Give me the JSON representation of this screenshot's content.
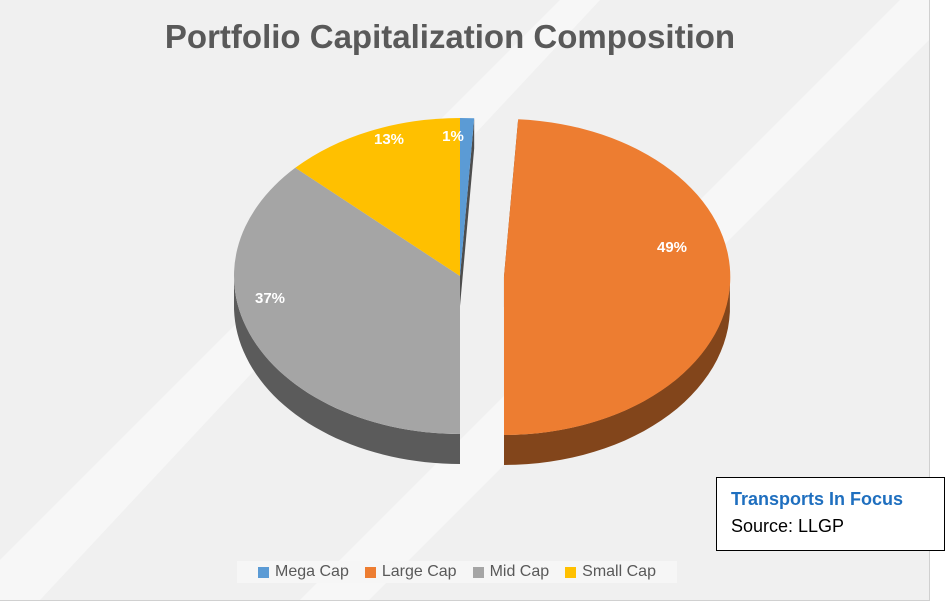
{
  "chart_data": {
    "type": "pie",
    "title": "Portfolio Capitalization Composition",
    "slices": [
      {
        "name": "Mega Cap",
        "value": 1,
        "label": "1%",
        "color": "#5b9bd5"
      },
      {
        "name": "Large Cap",
        "value": 49,
        "label": "49%",
        "color": "#ed7d31"
      },
      {
        "name": "Mid Cap",
        "value": 37,
        "label": "37%",
        "color": "#a5a5a5"
      },
      {
        "name": "Small Cap",
        "value": 13,
        "label": "13%",
        "color": "#ffc000"
      }
    ],
    "style": "3d-exploded",
    "legend_position": "bottom"
  },
  "note": {
    "title": "Transports In Focus",
    "source": "Source: LLGP"
  }
}
